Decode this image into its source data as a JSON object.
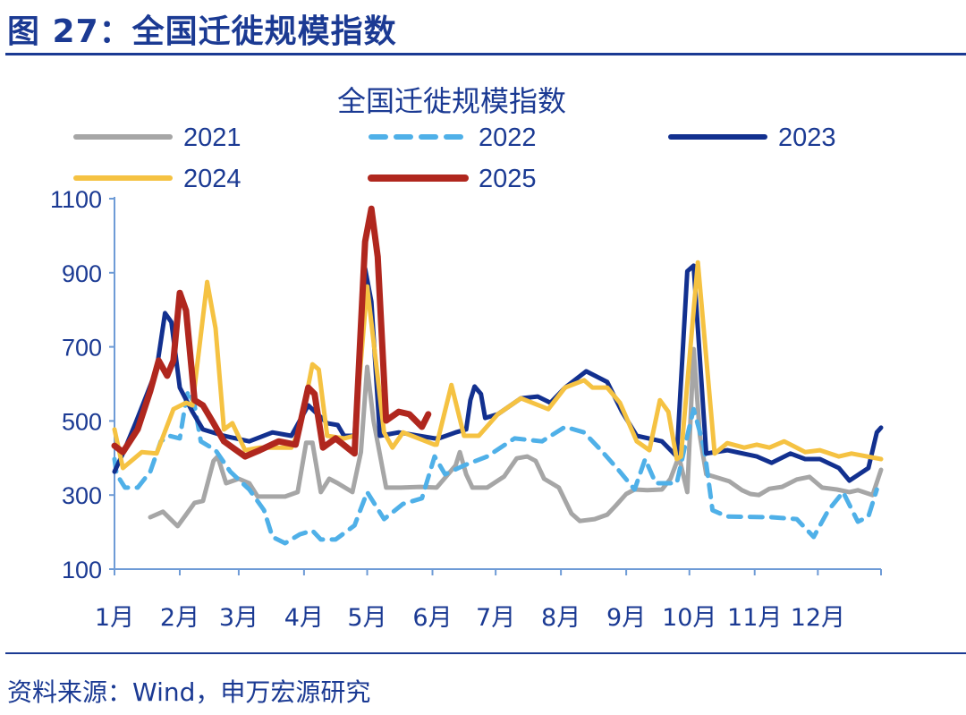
{
  "figure_title": "图 27：全国迁徙规模指数",
  "source": "资料来源：Wind，申万宏源研究",
  "colors": {
    "text": "#1b3a93",
    "axis": "#6e9bd6"
  },
  "chart_data": {
    "type": "line",
    "title": "全国迁徙规模指数",
    "xlabel": "",
    "ylabel": "",
    "x_unit": "day of year",
    "xlim": [
      1,
      365
    ],
    "ylim": [
      100,
      1100
    ],
    "yticks": [
      100,
      300,
      500,
      700,
      900,
      1100
    ],
    "xtick_labels": [
      "1月",
      "2月",
      "3月",
      "4月",
      "5月",
      "6月",
      "7月",
      "8月",
      "9月",
      "10月",
      "11月",
      "12月"
    ],
    "xtick_days": [
      1,
      32,
      60,
      91,
      121,
      152,
      182,
      213,
      244,
      274,
      305,
      335
    ],
    "grid": false,
    "legend_position": "top",
    "series": [
      {
        "name": "2021",
        "color": "#a6a6a6",
        "dash": false,
        "points": [
          [
            18,
            240
          ],
          [
            24,
            255
          ],
          [
            31,
            216
          ],
          [
            35,
            247
          ],
          [
            39,
            279
          ],
          [
            43,
            284
          ],
          [
            48,
            392
          ],
          [
            50,
            404
          ],
          [
            54,
            332
          ],
          [
            60,
            344
          ],
          [
            65,
            332
          ],
          [
            69,
            296
          ],
          [
            82,
            296
          ],
          [
            88,
            308
          ],
          [
            92,
            441
          ],
          [
            95,
            441
          ],
          [
            99,
            308
          ],
          [
            103,
            344
          ],
          [
            107,
            332
          ],
          [
            114,
            308
          ],
          [
            118,
            416
          ],
          [
            121,
            646
          ],
          [
            124,
            501
          ],
          [
            130,
            320
          ],
          [
            137,
            320
          ],
          [
            146,
            322
          ],
          [
            154,
            320
          ],
          [
            163,
            380
          ],
          [
            165,
            416
          ],
          [
            168,
            356
          ],
          [
            171,
            320
          ],
          [
            178,
            320
          ],
          [
            186,
            350
          ],
          [
            192,
            399
          ],
          [
            197,
            404
          ],
          [
            201,
            392
          ],
          [
            205,
            344
          ],
          [
            212,
            320
          ],
          [
            218,
            250
          ],
          [
            222,
            230
          ],
          [
            229,
            235
          ],
          [
            235,
            247
          ],
          [
            239,
            271
          ],
          [
            244,
            303
          ],
          [
            248,
            315
          ],
          [
            254,
            313
          ],
          [
            261,
            315
          ],
          [
            265,
            344
          ],
          [
            269,
            404
          ],
          [
            273,
            308
          ],
          [
            276,
            694
          ],
          [
            279,
            460
          ],
          [
            282,
            356
          ],
          [
            293,
            337
          ],
          [
            299,
            313
          ],
          [
            303,
            303
          ],
          [
            307,
            300
          ],
          [
            312,
            317
          ],
          [
            318,
            322
          ],
          [
            325,
            342
          ],
          [
            331,
            349
          ],
          [
            337,
            320
          ],
          [
            344,
            315
          ],
          [
            350,
            308
          ],
          [
            354,
            313
          ],
          [
            361,
            300
          ],
          [
            365,
            368
          ]
        ]
      },
      {
        "name": "2022",
        "color": "#4fb0e8",
        "dash": true,
        "points": [
          [
            1,
            397
          ],
          [
            2,
            356
          ],
          [
            6,
            320
          ],
          [
            12,
            320
          ],
          [
            18,
            363
          ],
          [
            23,
            445
          ],
          [
            27,
            460
          ],
          [
            32,
            453
          ],
          [
            35,
            556
          ],
          [
            36,
            581
          ],
          [
            39,
            542
          ],
          [
            42,
            445
          ],
          [
            49,
            421
          ],
          [
            56,
            363
          ],
          [
            65,
            315
          ],
          [
            72,
            259
          ],
          [
            76,
            187
          ],
          [
            82,
            170
          ],
          [
            89,
            194
          ],
          [
            95,
            204
          ],
          [
            99,
            180
          ],
          [
            106,
            180
          ],
          [
            115,
            218
          ],
          [
            121,
            308
          ],
          [
            129,
            235
          ],
          [
            138,
            276
          ],
          [
            147,
            291
          ],
          [
            153,
            404
          ],
          [
            158,
            356
          ],
          [
            167,
            380
          ],
          [
            178,
            404
          ],
          [
            191,
            453
          ],
          [
            204,
            445
          ],
          [
            215,
            484
          ],
          [
            224,
            469
          ],
          [
            232,
            421
          ],
          [
            241,
            363
          ],
          [
            248,
            315
          ],
          [
            253,
            397
          ],
          [
            258,
            332
          ],
          [
            268,
            332
          ],
          [
            273,
            460
          ],
          [
            276,
            532
          ],
          [
            281,
            428
          ],
          [
            285,
            259
          ],
          [
            292,
            242
          ],
          [
            313,
            240
          ],
          [
            325,
            235
          ],
          [
            333,
            187
          ],
          [
            340,
            259
          ],
          [
            347,
            308
          ],
          [
            354,
            228
          ],
          [
            359,
            242
          ],
          [
            363,
            315
          ]
        ]
      },
      {
        "name": "2023",
        "color": "#12308f",
        "dash": false,
        "points": [
          [
            1,
            363
          ],
          [
            5,
            412
          ],
          [
            11,
            494
          ],
          [
            17,
            581
          ],
          [
            21,
            639
          ],
          [
            25,
            791
          ],
          [
            28,
            767
          ],
          [
            32,
            590
          ],
          [
            38,
            525
          ],
          [
            43,
            477
          ],
          [
            53,
            460
          ],
          [
            65,
            445
          ],
          [
            76,
            469
          ],
          [
            85,
            460
          ],
          [
            93,
            542
          ],
          [
            102,
            494
          ],
          [
            107,
            489
          ],
          [
            110,
            460
          ],
          [
            115,
            460
          ],
          [
            120,
            911
          ],
          [
            123,
            822
          ],
          [
            127,
            460
          ],
          [
            136,
            469
          ],
          [
            153,
            453
          ],
          [
            155,
            453
          ],
          [
            163,
            469
          ],
          [
            168,
            477
          ],
          [
            170,
            556
          ],
          [
            172,
            593
          ],
          [
            175,
            573
          ],
          [
            177,
            508
          ],
          [
            183,
            518
          ],
          [
            194,
            561
          ],
          [
            202,
            566
          ],
          [
            208,
            549
          ],
          [
            215,
            590
          ],
          [
            225,
            634
          ],
          [
            235,
            605
          ],
          [
            242,
            525
          ],
          [
            249,
            460
          ],
          [
            261,
            445
          ],
          [
            268,
            404
          ],
          [
            273,
            904
          ],
          [
            276,
            919
          ],
          [
            282,
            412
          ],
          [
            292,
            421
          ],
          [
            306,
            404
          ],
          [
            313,
            387
          ],
          [
            322,
            412
          ],
          [
            329,
            397
          ],
          [
            336,
            397
          ],
          [
            345,
            373
          ],
          [
            350,
            339
          ],
          [
            359,
            373
          ],
          [
            363,
            469
          ],
          [
            365,
            482
          ]
        ]
      },
      {
        "name": "2024",
        "color": "#f5c242",
        "dash": false,
        "points": [
          [
            1,
            477
          ],
          [
            5,
            373
          ],
          [
            14,
            416
          ],
          [
            21,
            412
          ],
          [
            29,
            532
          ],
          [
            35,
            549
          ],
          [
            38,
            542
          ],
          [
            45,
            875
          ],
          [
            49,
            750
          ],
          [
            53,
            477
          ],
          [
            57,
            494
          ],
          [
            63,
            421
          ],
          [
            70,
            428
          ],
          [
            85,
            428
          ],
          [
            89,
            477
          ],
          [
            95,
            653
          ],
          [
            98,
            639
          ],
          [
            102,
            460
          ],
          [
            110,
            453
          ],
          [
            115,
            460
          ],
          [
            121,
            863
          ],
          [
            129,
            469
          ],
          [
            133,
            428
          ],
          [
            138,
            469
          ],
          [
            153,
            436
          ],
          [
            154,
            436
          ],
          [
            161,
            597
          ],
          [
            167,
            460
          ],
          [
            174,
            460
          ],
          [
            183,
            518
          ],
          [
            194,
            561
          ],
          [
            207,
            532
          ],
          [
            215,
            590
          ],
          [
            224,
            610
          ],
          [
            228,
            590
          ],
          [
            235,
            590
          ],
          [
            241,
            549
          ],
          [
            249,
            445
          ],
          [
            255,
            421
          ],
          [
            260,
            556
          ],
          [
            264,
            525
          ],
          [
            268,
            397
          ],
          [
            270,
            404
          ],
          [
            278,
            928
          ],
          [
            286,
            412
          ],
          [
            292,
            440
          ],
          [
            300,
            428
          ],
          [
            306,
            436
          ],
          [
            312,
            428
          ],
          [
            319,
            445
          ],
          [
            329,
            416
          ],
          [
            336,
            421
          ],
          [
            345,
            404
          ],
          [
            351,
            412
          ],
          [
            365,
            397
          ]
        ]
      },
      {
        "name": "2025",
        "color": "#b0271e",
        "dash": false,
        "points": [
          [
            1,
            433
          ],
          [
            5,
            416
          ],
          [
            12,
            477
          ],
          [
            18,
            581
          ],
          [
            22,
            663
          ],
          [
            26,
            622
          ],
          [
            29,
            663
          ],
          [
            32,
            846
          ],
          [
            35,
            798
          ],
          [
            39,
            556
          ],
          [
            43,
            542
          ],
          [
            48,
            494
          ],
          [
            53,
            445
          ],
          [
            63,
            404
          ],
          [
            70,
            421
          ],
          [
            79,
            445
          ],
          [
            87,
            436
          ],
          [
            93,
            590
          ],
          [
            96,
            573
          ],
          [
            100,
            428
          ],
          [
            106,
            453
          ],
          [
            115,
            412
          ],
          [
            120,
            984
          ],
          [
            123,
            1073
          ],
          [
            126,
            943
          ],
          [
            130,
            501
          ],
          [
            136,
            525
          ],
          [
            141,
            518
          ],
          [
            147,
            484
          ],
          [
            150,
            518
          ]
        ]
      }
    ]
  }
}
